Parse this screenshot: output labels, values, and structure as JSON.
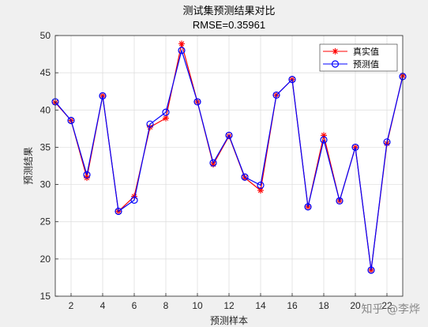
{
  "chart_data": {
    "type": "line",
    "title": "测试集预测结果对比",
    "subtitle": "RMSE=0.35961",
    "xlabel": "预测样本",
    "ylabel": "预测结果",
    "xlim": [
      1,
      23
    ],
    "ylim": [
      15,
      50
    ],
    "xticks": [
      2,
      4,
      6,
      8,
      10,
      12,
      14,
      16,
      18,
      20,
      22
    ],
    "yticks": [
      15,
      20,
      25,
      30,
      35,
      40,
      45,
      50
    ],
    "grid": true,
    "legend_position": "top-right",
    "x": [
      1,
      2,
      3,
      4,
      5,
      6,
      7,
      8,
      9,
      10,
      11,
      12,
      13,
      14,
      15,
      16,
      17,
      18,
      19,
      20,
      21,
      22,
      23
    ],
    "series": [
      {
        "name": "真实值",
        "color": "#ff0000",
        "marker": "asterisk",
        "values": [
          41.0,
          38.6,
          30.9,
          41.9,
          26.4,
          28.4,
          37.7,
          38.9,
          48.9,
          41.1,
          32.7,
          36.5,
          30.9,
          29.2,
          42.0,
          44.1,
          27.0,
          36.6,
          27.8,
          35.0,
          18.5,
          35.5,
          44.6
        ]
      },
      {
        "name": "预测值",
        "color": "#0000ff",
        "marker": "circle",
        "values": [
          41.1,
          38.6,
          31.3,
          41.9,
          26.4,
          27.9,
          38.1,
          39.7,
          48.0,
          41.1,
          32.9,
          36.6,
          31.0,
          29.9,
          42.0,
          44.1,
          27.0,
          36.0,
          27.8,
          35.0,
          18.5,
          35.7,
          44.5
        ]
      }
    ]
  },
  "watermark": "知乎 @李烨"
}
